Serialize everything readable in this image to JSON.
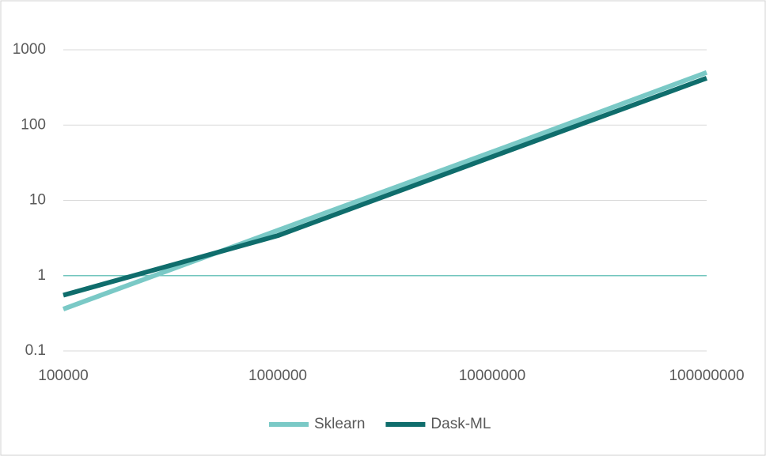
{
  "chart_data": {
    "type": "line",
    "x": [
      100000,
      1000000,
      10000000,
      100000000
    ],
    "series": [
      {
        "name": "Sklearn",
        "color": "#7ac9c6",
        "values": [
          0.36,
          4,
          44,
          500
        ]
      },
      {
        "name": "Dask-ML",
        "color": "#0f6d6c",
        "values": [
          0.55,
          3.4,
          38,
          420
        ]
      }
    ],
    "xscale": "log",
    "yscale": "log",
    "xlim": [
      100000,
      100000000
    ],
    "xticks": [
      100000,
      1000000,
      10000000,
      100000000
    ],
    "ylim": [
      0.1,
      1000
    ],
    "yticks": [
      0.1,
      1,
      10,
      100,
      1000
    ],
    "grid": true,
    "x_axis_at": 1,
    "axis_color": "#72c6be",
    "legend": "bottom"
  }
}
